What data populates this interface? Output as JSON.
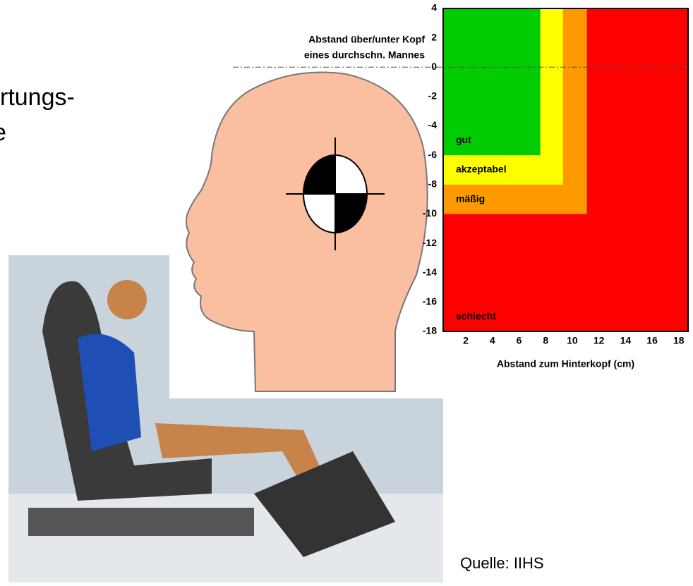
{
  "slide_text": [
    "e",
    "rtungs-",
    "e"
  ],
  "source": "Quelle: IIHS",
  "chart_data": {
    "type": "zones",
    "annotation": [
      "Abstand über/unter Kopf",
      "eines durchschn. Mannes"
    ],
    "x_label": "Abstand zum Hinterkopf (cm)",
    "xlim": [
      0.3,
      18.7
    ],
    "ylim": [
      -18,
      4
    ],
    "xticks": [
      2,
      4,
      6,
      8,
      10,
      12,
      14,
      16,
      18
    ],
    "yticks": [
      4,
      2,
      0,
      -2,
      -4,
      -6,
      -8,
      -10,
      -12,
      -14,
      -16,
      -18
    ],
    "hline": 0,
    "series": [
      {
        "name": "schlecht",
        "color": "#ff0000",
        "xmax": 18.7,
        "ymin": -18
      },
      {
        "name": "mäßig",
        "color": "#ff9900",
        "xmax": 11.1,
        "ymin": -10
      },
      {
        "name": "akzeptabel",
        "color": "#ffff00",
        "xmax": 9.3,
        "ymin": -8
      },
      {
        "name": "gut",
        "color": "#00cc00",
        "xmax": 7.6,
        "ymin": -6
      }
    ]
  }
}
